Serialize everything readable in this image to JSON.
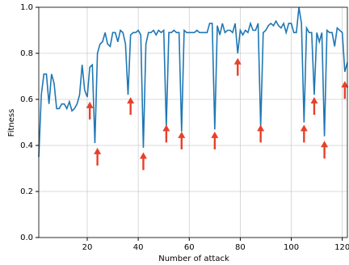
{
  "chart_data": {
    "type": "line",
    "xlabel": "Number of attack",
    "ylabel": "Fitness",
    "x": [
      1,
      2,
      3,
      4,
      5,
      6,
      7,
      8,
      9,
      10,
      11,
      12,
      13,
      14,
      15,
      16,
      17,
      18,
      19,
      20,
      21,
      22,
      23,
      24,
      25,
      26,
      27,
      28,
      29,
      30,
      31,
      32,
      33,
      34,
      35,
      36,
      37,
      38,
      39,
      40,
      41,
      42,
      43,
      44,
      45,
      46,
      47,
      48,
      49,
      50,
      51,
      52,
      53,
      54,
      55,
      56,
      57,
      58,
      59,
      60,
      61,
      62,
      63,
      64,
      65,
      66,
      67,
      68,
      69,
      70,
      71,
      72,
      73,
      74,
      75,
      76,
      77,
      78,
      79,
      80,
      81,
      82,
      83,
      84,
      85,
      86,
      87,
      88,
      89,
      90,
      91,
      92,
      93,
      94,
      95,
      96,
      97,
      98,
      99,
      100,
      101,
      102,
      103,
      104,
      105,
      106,
      107,
      108,
      109,
      110,
      111,
      112,
      113,
      114,
      115,
      116,
      117,
      118,
      119,
      120,
      121,
      122
    ],
    "series": [
      {
        "color": "#1f77b4",
        "values": [
          0.35,
          0.62,
          0.71,
          0.71,
          0.58,
          0.71,
          0.67,
          0.56,
          0.56,
          0.58,
          0.58,
          0.56,
          0.59,
          0.55,
          0.56,
          0.58,
          0.62,
          0.75,
          0.64,
          0.61,
          0.74,
          0.75,
          0.41,
          0.8,
          0.84,
          0.85,
          0.89,
          0.84,
          0.83,
          0.89,
          0.89,
          0.85,
          0.9,
          0.89,
          0.84,
          0.62,
          0.88,
          0.89,
          0.89,
          0.9,
          0.88,
          0.39,
          0.84,
          0.89,
          0.89,
          0.9,
          0.88,
          0.9,
          0.89,
          0.9,
          0.48,
          0.89,
          0.89,
          0.9,
          0.89,
          0.89,
          0.46,
          0.9,
          0.89,
          0.89,
          0.89,
          0.89,
          0.9,
          0.89,
          0.89,
          0.89,
          0.89,
          0.93,
          0.93,
          0.47,
          0.92,
          0.88,
          0.93,
          0.89,
          0.9,
          0.9,
          0.89,
          0.93,
          0.8,
          0.9,
          0.88,
          0.9,
          0.89,
          0.93,
          0.9,
          0.9,
          0.93,
          0.48,
          0.89,
          0.9,
          0.92,
          0.93,
          0.92,
          0.94,
          0.92,
          0.91,
          0.93,
          0.89,
          0.93,
          0.93,
          0.89,
          0.89,
          1.0,
          0.93,
          0.5,
          0.91,
          0.89,
          0.89,
          0.62,
          0.89,
          0.85,
          0.89,
          0.44,
          0.9,
          0.89,
          0.89,
          0.83,
          0.91,
          0.9,
          0.89,
          0.72,
          0.76
        ]
      }
    ],
    "arrows": {
      "color": "#e8402a",
      "x": [
        21,
        24,
        37,
        42,
        51,
        57,
        70,
        79,
        88,
        105,
        109,
        113,
        121
      ],
      "y": [
        0.59,
        0.39,
        0.61,
        0.37,
        0.49,
        0.46,
        0.46,
        0.78,
        0.49,
        0.49,
        0.61,
        0.42,
        0.68
      ]
    },
    "xlim": [
      1,
      122
    ],
    "ylim": [
      0,
      1
    ],
    "xticks": [
      20,
      40,
      60,
      80,
      100,
      120
    ],
    "yticks": [
      {
        "value": 0,
        "label": "0.0"
      },
      0.2,
      0.4,
      0.6,
      0.8,
      {
        "value": 1,
        "label": "1.0"
      }
    ],
    "grid": true
  }
}
